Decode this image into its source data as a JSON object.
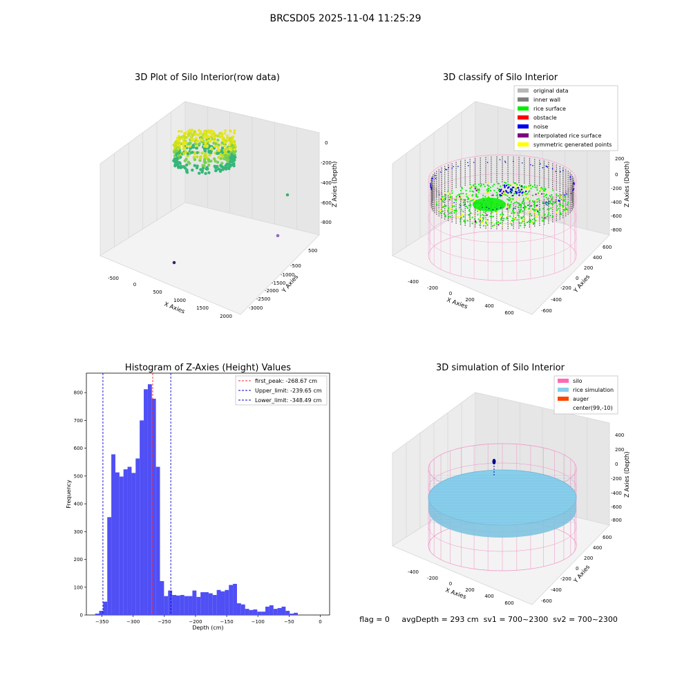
{
  "figure_title": "BRCSD05 2025-11-04 11:25:29",
  "colors": {
    "bar": "#4f4ff5",
    "first_peak": "#ff2222",
    "limit": "#0000dd",
    "original": "#b8b8b8",
    "inner_wall": "#7f7f7f",
    "rice_surface": "#00ee00",
    "obstacle": "#ff0000",
    "noise": "#0000ee",
    "interpolated": "#800080",
    "symmetric": "#ffff00",
    "silo": "#ff69b4",
    "rice_sim": "#87ceeb",
    "auger": "#ff4500"
  },
  "panel_3d_raw": {
    "title": "3D Plot of Silo Interior(row data)",
    "xlabel": "X Axies",
    "ylabel": "Y Axies",
    "zlabel": "Z Axies (Depth)",
    "x_ticks": [
      "-500",
      "0",
      "500",
      "1000",
      "1500",
      "2000"
    ],
    "y_ticks": [
      "500",
      "-500",
      "-1000",
      "-1500",
      "-2000",
      "-2500",
      "-3000"
    ],
    "z_ticks": [
      "0",
      "-200",
      "-400",
      "-600",
      "-800"
    ]
  },
  "panel_3d_classify": {
    "title": "3D classify of Silo Interior",
    "xlabel": "X Axies",
    "ylabel": "Y Axies",
    "zlabel": "Z Axies (Depth)",
    "x_ticks": [
      "-400",
      "-200",
      "0",
      "200",
      "400",
      "600"
    ],
    "y_ticks": [
      "600",
      "400",
      "200",
      "0",
      "-200",
      "-400",
      "-600"
    ],
    "z_ticks": [
      "200",
      "0",
      "-200",
      "-400",
      "-600",
      "-800"
    ],
    "legend": [
      "original data",
      "inner wall",
      "rice surface",
      "obstacle",
      "noise",
      "interpolated rice surface",
      "symmetric generated points"
    ]
  },
  "panel_3d_sim": {
    "title": "3D simulation of Silo Interior",
    "xlabel": "X Axies",
    "ylabel": "Y Axies",
    "zlabel": "Z Axies (Depth)",
    "x_ticks": [
      "-400",
      "-200",
      "0",
      "200",
      "400",
      "600"
    ],
    "y_ticks": [
      "600",
      "400",
      "200",
      "0",
      "-200",
      "-400",
      "-600"
    ],
    "z_ticks": [
      "400",
      "200",
      "0",
      "-200",
      "-400",
      "-600",
      "-800"
    ],
    "legend": [
      "silo",
      "rice simulation",
      "auger",
      "center(99,-10)"
    ]
  },
  "status_text": "flag = 0     avgDepth = 293 cm  sv1 = 700~2300  sv2 = 700~2300",
  "chart_data": {
    "type": "bar",
    "title": "Histogram of Z-Axies (Height) Values",
    "xlabel": "Depth (cm)",
    "ylabel": "Frequency",
    "xlim": [
      -375,
      15
    ],
    "ylim": [
      0,
      870
    ],
    "x_ticks": [
      -350,
      -300,
      -250,
      -200,
      -150,
      -100,
      -50,
      0
    ],
    "y_ticks": [
      0,
      100,
      200,
      300,
      400,
      500,
      600,
      700,
      800
    ],
    "bin_width": 6.5,
    "bin_start": -361,
    "values": [
      5,
      15,
      48,
      352,
      578,
      513,
      498,
      524,
      533,
      511,
      563,
      700,
      812,
      830,
      778,
      533,
      122,
      68,
      88,
      72,
      70,
      72,
      68,
      68,
      88,
      65,
      82,
      82,
      78,
      72,
      90,
      85,
      90,
      108,
      112,
      42,
      38,
      22,
      18,
      20,
      12,
      12,
      30,
      35,
      22,
      25,
      30,
      15,
      5,
      8
    ],
    "lines": [
      {
        "label": "first_peak: -268.67 cm",
        "x": -268.67,
        "color": "#ff2222"
      },
      {
        "label": "Upper_limit: -239.65 cm",
        "x": -239.65,
        "color": "#0000dd"
      },
      {
        "label": "Lower_limit: -348.49 cm",
        "x": -348.49,
        "color": "#0000dd"
      }
    ]
  }
}
